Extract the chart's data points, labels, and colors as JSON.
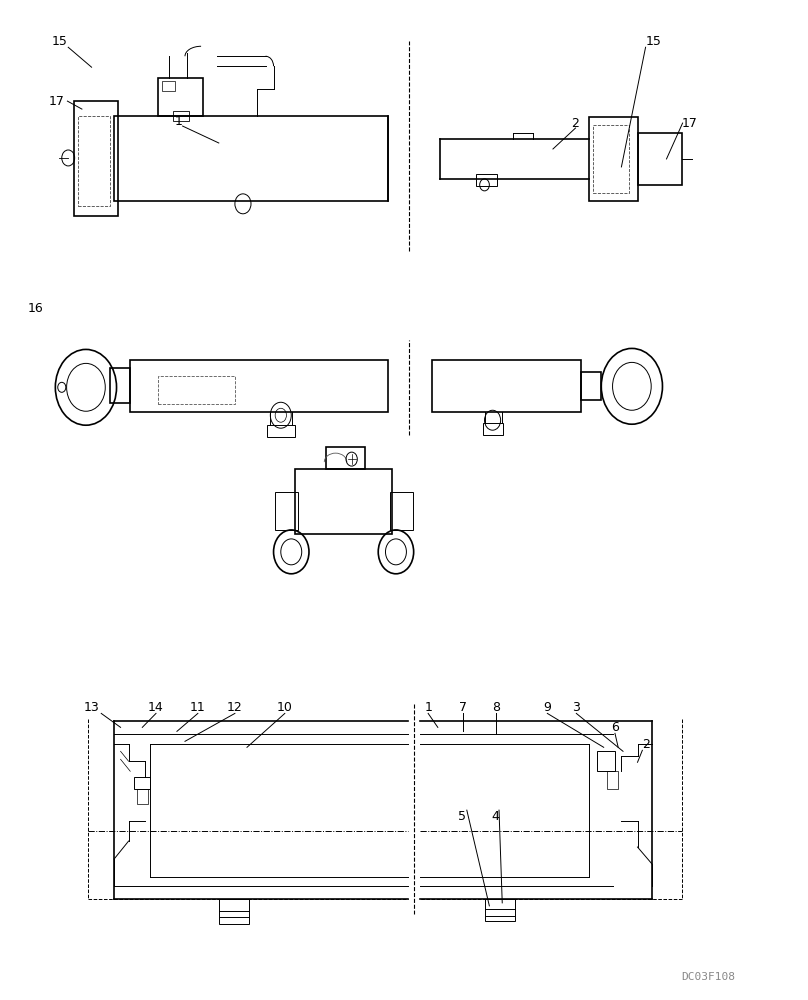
{
  "bg_color": "#ffffff",
  "line_color": "#000000",
  "fig_width": 8.08,
  "fig_height": 10.0,
  "watermark": "DC03F108"
}
